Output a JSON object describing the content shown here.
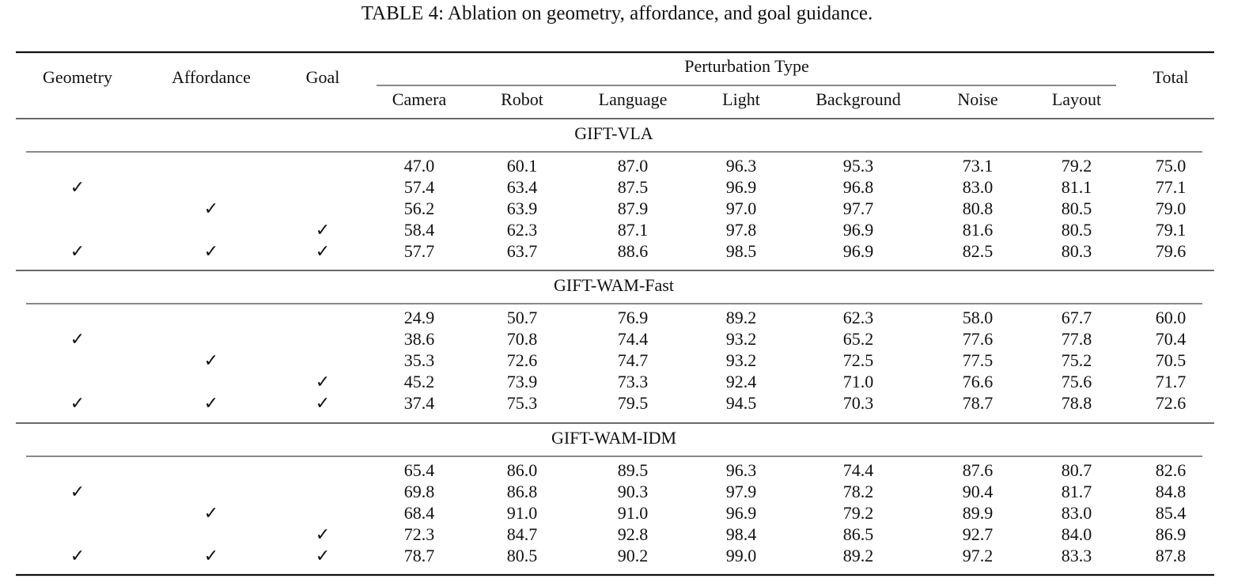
{
  "title": "TABLE 4: Ablation on geometry, affordance, and goal guidance.",
  "header": {
    "components": [
      "Geometry",
      "Affordance",
      "Goal"
    ],
    "perturbation": {
      "label": "Perturbation Type",
      "columns": [
        "Camera",
        "Robot",
        "Language",
        "Light",
        "Background",
        "Noise",
        "Layout"
      ]
    },
    "total": "Total"
  },
  "groups": [
    {
      "name": "GIFT-VLA",
      "rows": [
        {
          "checks": [
            null,
            null,
            null
          ],
          "values": [
            "47.0",
            "60.1",
            "87.0",
            "96.3",
            "95.3",
            "73.1",
            "79.2",
            "75.0"
          ]
        },
        {
          "checks": [
            "✓",
            null,
            null
          ],
          "values": [
            "57.4",
            "63.4",
            "87.5",
            "96.9",
            "96.8",
            "83.0",
            "81.1",
            "77.1"
          ]
        },
        {
          "checks": [
            null,
            "✓",
            null
          ],
          "values": [
            "56.2",
            "63.9",
            "87.9",
            "97.0",
            "97.7",
            "80.8",
            "80.5",
            "79.0"
          ]
        },
        {
          "checks": [
            null,
            null,
            "✓"
          ],
          "values": [
            "58.4",
            "62.3",
            "87.1",
            "97.8",
            "96.9",
            "81.6",
            "80.5",
            "79.1"
          ]
        },
        {
          "checks": [
            "✓",
            "✓",
            "✓"
          ],
          "values": [
            "57.7",
            "63.7",
            "88.6",
            "98.5",
            "96.9",
            "82.5",
            "80.3",
            "79.6"
          ]
        }
      ]
    },
    {
      "name": "GIFT-WAM-Fast",
      "rows": [
        {
          "checks": [
            null,
            null,
            null
          ],
          "values": [
            "24.9",
            "50.7",
            "76.9",
            "89.2",
            "62.3",
            "58.0",
            "67.7",
            "60.0"
          ]
        },
        {
          "checks": [
            "✓",
            null,
            null
          ],
          "values": [
            "38.6",
            "70.8",
            "74.4",
            "93.2",
            "65.2",
            "77.6",
            "77.8",
            "70.4"
          ]
        },
        {
          "checks": [
            null,
            "✓",
            null
          ],
          "values": [
            "35.3",
            "72.6",
            "74.7",
            "93.2",
            "72.5",
            "77.5",
            "75.2",
            "70.5"
          ]
        },
        {
          "checks": [
            null,
            null,
            "✓"
          ],
          "values": [
            "45.2",
            "73.9",
            "73.3",
            "92.4",
            "71.0",
            "76.6",
            "75.6",
            "71.7"
          ]
        },
        {
          "checks": [
            "✓",
            "✓",
            "✓"
          ],
          "values": [
            "37.4",
            "75.3",
            "79.5",
            "94.5",
            "70.3",
            "78.7",
            "78.8",
            "72.6"
          ]
        }
      ]
    },
    {
      "name": "GIFT-WAM-IDM",
      "rows": [
        {
          "checks": [
            null,
            null,
            null
          ],
          "values": [
            "65.4",
            "86.0",
            "89.5",
            "96.3",
            "74.4",
            "87.6",
            "80.7",
            "82.6"
          ]
        },
        {
          "checks": [
            "✓",
            null,
            null
          ],
          "values": [
            "69.8",
            "86.8",
            "90.3",
            "97.9",
            "78.2",
            "90.4",
            "81.7",
            "84.8"
          ]
        },
        {
          "checks": [
            null,
            "✓",
            null
          ],
          "values": [
            "68.4",
            "91.0",
            "91.0",
            "96.9",
            "79.2",
            "89.9",
            "83.0",
            "85.4"
          ]
        },
        {
          "checks": [
            null,
            null,
            "✓"
          ],
          "values": [
            "72.3",
            "84.7",
            "92.8",
            "98.4",
            "86.5",
            "92.7",
            "84.0",
            "86.9"
          ]
        },
        {
          "checks": [
            "✓",
            "✓",
            "✓"
          ],
          "values": [
            "78.7",
            "80.5",
            "90.2",
            "99.0",
            "89.2",
            "97.2",
            "83.3",
            "87.8"
          ]
        }
      ]
    }
  ]
}
